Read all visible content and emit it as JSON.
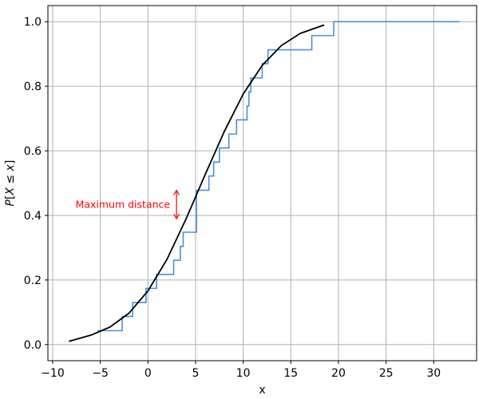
{
  "chart_data": {
    "type": "line",
    "title": "",
    "xlabel": "x",
    "ylabel": "P[X ≤ x]",
    "xlim": [
      -10.5,
      34.5
    ],
    "ylim": [
      -0.05,
      1.05
    ],
    "xticks": [
      -10,
      -5,
      0,
      5,
      10,
      15,
      20,
      25,
      30
    ],
    "yticks": [
      0.0,
      0.2,
      0.4,
      0.6,
      0.8,
      1.0
    ],
    "xtick_labels": [
      "−10",
      "−5",
      "0",
      "5",
      "10",
      "15",
      "20",
      "25",
      "30"
    ],
    "ytick_labels": [
      "0.0",
      "0.2",
      "0.4",
      "0.6",
      "0.8",
      "1.0"
    ],
    "grid": true,
    "series": [
      {
        "kind": "step",
        "color": "#4a90d9",
        "x": [
          -5.3,
          -2.7,
          -1.6,
          -0.2,
          0.9,
          2.7,
          3.4,
          3.7,
          5.1,
          6.4,
          6.9,
          7.5,
          8.5,
          9.3,
          10.4,
          10.6,
          10.8,
          12.0,
          12.6,
          17.2,
          19.5,
          32.7
        ],
        "y": [
          0.043,
          0.087,
          0.13,
          0.174,
          0.217,
          0.261,
          0.304,
          0.348,
          0.478,
          0.522,
          0.565,
          0.609,
          0.652,
          0.696,
          0.739,
          0.783,
          0.826,
          0.87,
          0.913,
          0.957,
          1.0,
          1.0
        ]
      },
      {
        "kind": "curve",
        "color": "#000000",
        "x": [
          -8.3,
          -6,
          -4,
          -2,
          0,
          2,
          4,
          6,
          8,
          10,
          12,
          14,
          16,
          18.5
        ],
        "y": [
          0.01,
          0.029,
          0.054,
          0.097,
          0.166,
          0.264,
          0.389,
          0.526,
          0.659,
          0.776,
          0.865,
          0.926,
          0.964,
          0.99
        ]
      }
    ],
    "annotations": [
      {
        "text": "Maximum distance",
        "color": "#ff0000",
        "arrow_x": 3.0,
        "y_from": 0.39,
        "y_to": 0.478
      }
    ]
  }
}
